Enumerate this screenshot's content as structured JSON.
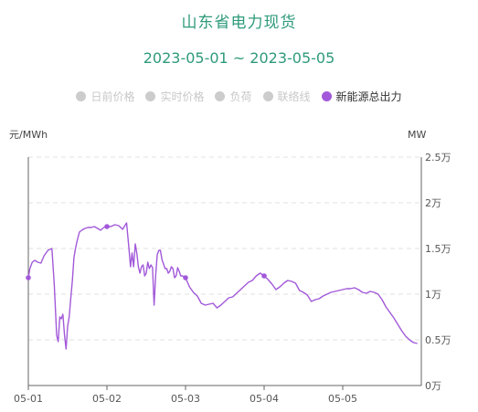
{
  "chart_data": {
    "type": "line",
    "title": "山东省电力现货",
    "subtitle": "2023-05-01 ~ 2023-05-05",
    "legend": [
      {
        "name": "日前价格",
        "active": false
      },
      {
        "name": "实时价格",
        "active": false
      },
      {
        "name": "负荷",
        "active": false
      },
      {
        "name": "联络线",
        "active": false
      },
      {
        "name": "新能源总出力",
        "active": true
      }
    ],
    "left_unit": "元/MWh",
    "right_unit": "MW",
    "x_ticks": [
      "05-01",
      "05-02",
      "05-03",
      "05-04",
      "05-05"
    ],
    "y_ticks": [
      "0万",
      "0.5万",
      "1万",
      "1.5万",
      "2万",
      "2.5万"
    ],
    "xlim": [
      0,
      5
    ],
    "ylim": [
      0,
      25000
    ],
    "grid": true,
    "line_color": "#a259d9",
    "series": [
      {
        "name": "新能源总出力",
        "x": [
          0.0,
          0.02,
          0.05,
          0.08,
          0.12,
          0.16,
          0.2,
          0.25,
          0.3,
          0.33,
          0.36,
          0.38,
          0.4,
          0.42,
          0.44,
          0.46,
          0.48,
          0.5,
          0.52,
          0.54,
          0.56,
          0.58,
          0.6,
          0.62,
          0.65,
          0.68,
          0.72,
          0.76,
          0.8,
          0.84,
          0.88,
          0.92,
          0.96,
          1.0,
          1.05,
          1.1,
          1.15,
          1.2,
          1.25,
          1.28,
          1.3,
          1.32,
          1.34,
          1.36,
          1.38,
          1.4,
          1.42,
          1.44,
          1.46,
          1.48,
          1.5,
          1.52,
          1.54,
          1.56,
          1.58,
          1.6,
          1.62,
          1.64,
          1.66,
          1.68,
          1.7,
          1.72,
          1.74,
          1.76,
          1.78,
          1.8,
          1.82,
          1.84,
          1.86,
          1.88,
          1.9,
          1.92,
          1.94,
          1.96,
          2.0,
          2.05,
          2.1,
          2.15,
          2.2,
          2.25,
          2.3,
          2.35,
          2.4,
          2.45,
          2.5,
          2.55,
          2.6,
          2.65,
          2.7,
          2.75,
          2.8,
          2.85,
          2.9,
          2.95,
          3.0,
          3.05,
          3.1,
          3.15,
          3.2,
          3.25,
          3.3,
          3.35,
          3.4,
          3.45,
          3.5,
          3.55,
          3.6,
          3.65,
          3.7,
          3.75,
          3.8,
          3.85,
          3.9,
          3.95,
          4.0,
          4.05,
          4.1,
          4.15,
          4.2,
          4.25,
          4.3,
          4.35,
          4.4,
          4.45,
          4.5,
          4.55,
          4.6,
          4.65,
          4.7,
          4.75,
          4.8,
          4.85,
          4.9,
          4.95
        ],
        "values": [
          11800,
          12800,
          13500,
          13700,
          13500,
          13400,
          14200,
          14800,
          15000,
          11000,
          5500,
          4800,
          7500,
          7300,
          7800,
          5500,
          4000,
          6500,
          7500,
          9500,
          11500,
          14000,
          15000,
          15800,
          16800,
          17000,
          17200,
          17300,
          17300,
          17400,
          17200,
          17000,
          17300,
          17400,
          17400,
          17600,
          17500,
          17100,
          17800,
          15000,
          13000,
          14500,
          13000,
          15500,
          14500,
          13000,
          12300,
          13000,
          13200,
          12000,
          12300,
          13500,
          12800,
          13200,
          12900,
          8800,
          12000,
          14300,
          14800,
          14800,
          13800,
          13300,
          12800,
          12800,
          12300,
          12500,
          13000,
          12800,
          11800,
          12000,
          12900,
          12500,
          12000,
          12000,
          11800,
          10800,
          10200,
          9800,
          9000,
          8800,
          8900,
          9000,
          8500,
          8800,
          9200,
          9600,
          9700,
          10100,
          10500,
          10900,
          11300,
          11500,
          12000,
          12300,
          12000,
          11600,
          11100,
          10500,
          10800,
          11200,
          11500,
          11400,
          11200,
          10400,
          10200,
          9900,
          9200,
          9400,
          9500,
          9800,
          10000,
          10200,
          10300,
          10400,
          10500,
          10600,
          10600,
          10700,
          10500,
          10200,
          10100,
          10300,
          10200,
          10000,
          9400,
          8600,
          8000,
          7400,
          6700,
          6000,
          5400,
          5000,
          4700,
          4600
        ],
        "markers_x": [
          0.0,
          1.0,
          2.0,
          3.0
        ]
      }
    ]
  }
}
